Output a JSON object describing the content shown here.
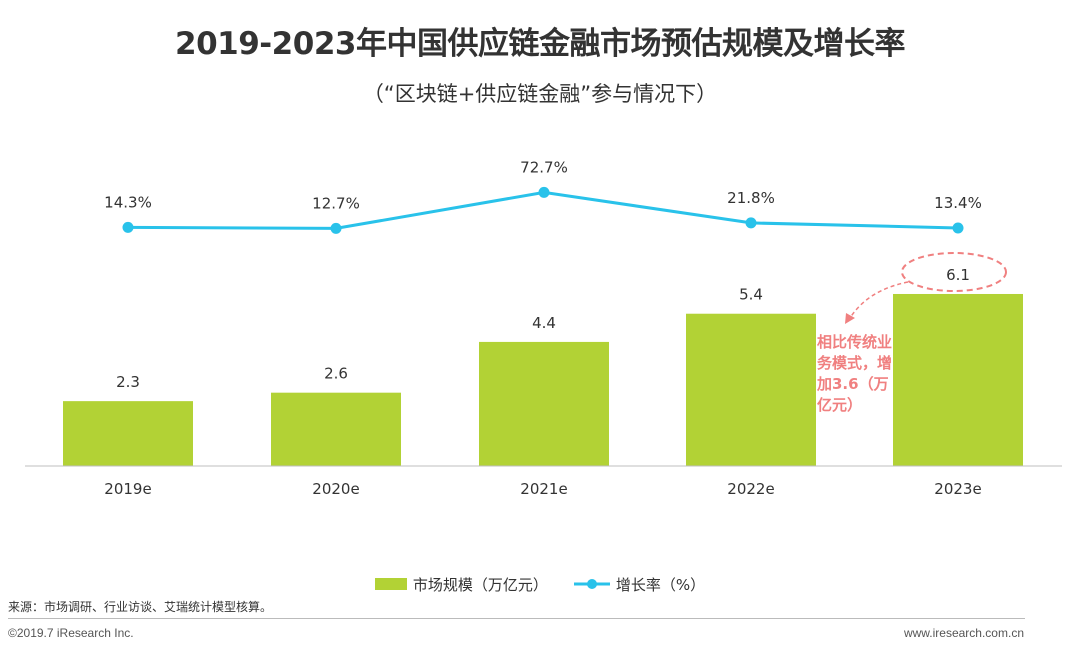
{
  "title": "2019-2023年中国供应链金融市场预估规模及增长率",
  "subtitle": "（“区块链+供应链金融”参与情况下）",
  "colors": {
    "bar": "#b2d235",
    "line": "#29c2ea",
    "annotation": "#f08080",
    "axis": "#bfbfbf"
  },
  "chart_data": {
    "type": "bar",
    "categories": [
      "2019e",
      "2020e",
      "2021e",
      "2022e",
      "2023e"
    ],
    "series": [
      {
        "name": "市场规模（万亿元）",
        "type": "bar",
        "values": [
          2.3,
          2.6,
          4.4,
          5.4,
          6.1
        ],
        "labels": [
          "2.3",
          "2.6",
          "4.4",
          "5.4",
          "6.1"
        ]
      },
      {
        "name": "增长率（%）",
        "type": "line",
        "values": [
          14.3,
          12.7,
          72.7,
          21.8,
          13.4
        ],
        "labels": [
          "14.3%",
          "12.7%",
          "72.7%",
          "21.8%",
          "13.4%"
        ]
      }
    ],
    "title": "2019-2023年中国供应链金融市场预估规模及增长率",
    "annotation": {
      "text_lines": [
        "相比传统业",
        "务模式，增",
        "加3.6（万",
        "亿元）"
      ],
      "target_category": "2023e"
    }
  },
  "legend": {
    "bar_label": "市场规模（万亿元）",
    "line_label": "增长率（%）"
  },
  "source": "来源：市场调研、行业访谈、艾瑞统计模型核算。",
  "copyright": "©2019.7 iResearch Inc.",
  "website": "www.iresearch.com.cn"
}
